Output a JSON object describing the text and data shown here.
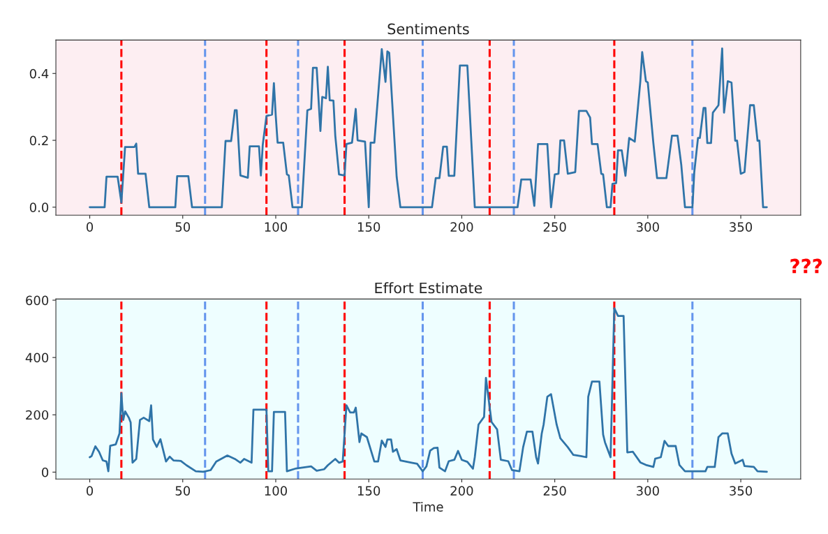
{
  "chart_data": [
    {
      "type": "line",
      "title": "Sentiments",
      "xlim": [
        -18.2,
        382.2
      ],
      "xticks": [
        0,
        50,
        100,
        150,
        200,
        250,
        300,
        350
      ],
      "ylim": [
        -0.024,
        0.5
      ],
      "yticks": [
        {
          "value": 0,
          "label": "0.0"
        },
        0.2,
        0.4
      ],
      "grid": false,
      "marker": "none",
      "line_style": "solid",
      "series": [
        {
          "color": "#2f74a8",
          "x": [
            0,
            8,
            9,
            15,
            17,
            19,
            24,
            25,
            26,
            30,
            32,
            46,
            47,
            53,
            55,
            71,
            73,
            76,
            78,
            79,
            81,
            85,
            86,
            91,
            92,
            93,
            95,
            98,
            99,
            100,
            101,
            104,
            106,
            107,
            109,
            114,
            117,
            119,
            120,
            122,
            124,
            125,
            127,
            128,
            129,
            131,
            132,
            134,
            137,
            138,
            141,
            143,
            144,
            148,
            150,
            151,
            153,
            157,
            159,
            160,
            161,
            165,
            167,
            184,
            186,
            188,
            190,
            192,
            193,
            196,
            199,
            203,
            207,
            230,
            232,
            237,
            239,
            241,
            246,
            248,
            250,
            252,
            253,
            255,
            257,
            261,
            263,
            267,
            269,
            270,
            273,
            275,
            276,
            278,
            280,
            281,
            283,
            284,
            286,
            288,
            290,
            293,
            296,
            297,
            299,
            300,
            303,
            305,
            310,
            313,
            316,
            318,
            320,
            324,
            325,
            327,
            328,
            330,
            331,
            332,
            334,
            335,
            338,
            340,
            341,
            343,
            345,
            347,
            348,
            350,
            352,
            355,
            357,
            359,
            360,
            362,
            364
          ],
          "values": [
            0,
            0,
            0.091,
            0.091,
            0.014,
            0.18,
            0.18,
            0.19,
            0.1,
            0.1,
            0,
            0,
            0.093,
            0.093,
            0,
            0,
            0.198,
            0.198,
            0.29,
            0.29,
            0.095,
            0.088,
            0.182,
            0.182,
            0.095,
            0.186,
            0.273,
            0.277,
            0.371,
            0.273,
            0.193,
            0.193,
            0.098,
            0.095,
            0,
            0,
            0.29,
            0.294,
            0.417,
            0.417,
            0.228,
            0.33,
            0.326,
            0.42,
            0.32,
            0.319,
            0.214,
            0.098,
            0.095,
            0.189,
            0.193,
            0.294,
            0.2,
            0.196,
            0,
            0.193,
            0.193,
            0.473,
            0.375,
            0.466,
            0.462,
            0.091,
            0,
            0,
            0.087,
            0.087,
            0.181,
            0.181,
            0.094,
            0.094,
            0.424,
            0.424,
            0,
            0,
            0.083,
            0.083,
            0.004,
            0.189,
            0.189,
            0,
            0.098,
            0.1,
            0.2,
            0.2,
            0.1,
            0.105,
            0.288,
            0.288,
            0.268,
            0.189,
            0.189,
            0.1,
            0.098,
            0,
            0,
            0.07,
            0.072,
            0.17,
            0.17,
            0.094,
            0.207,
            0.196,
            0.377,
            0.464,
            0.377,
            0.373,
            0.192,
            0.087,
            0.087,
            0.214,
            0.214,
            0.127,
            0,
            0,
            0.105,
            0.207,
            0.207,
            0.297,
            0.297,
            0.192,
            0.192,
            0.283,
            0.305,
            0.475,
            0.283,
            0.377,
            0.373,
            0.199,
            0.199,
            0.1,
            0.105,
            0.305,
            0.305,
            0.199,
            0.199,
            0,
            0
          ]
        }
      ],
      "ref_lines": [
        {
          "axis": "x",
          "value": 17,
          "color": "#ff0000",
          "line_style": "dashed"
        },
        {
          "axis": "x",
          "value": 95,
          "color": "#ff0000",
          "line_style": "dashed"
        },
        {
          "axis": "x",
          "value": 137,
          "color": "#ff0000",
          "line_style": "dashed"
        },
        {
          "axis": "x",
          "value": 215,
          "color": "#ff0000",
          "line_style": "dashed"
        },
        {
          "axis": "x",
          "value": 282,
          "color": "#ff0000",
          "line_style": "dashed"
        },
        {
          "axis": "x",
          "value": 62,
          "color": "#6495ed",
          "line_style": "dashed"
        },
        {
          "axis": "x",
          "value": 112,
          "color": "#6495ed",
          "line_style": "dashed"
        },
        {
          "axis": "x",
          "value": 179,
          "color": "#6495ed",
          "line_style": "dashed"
        },
        {
          "axis": "x",
          "value": 228,
          "color": "#6495ed",
          "line_style": "dashed"
        },
        {
          "axis": "x",
          "value": 324,
          "color": "#6495ed",
          "line_style": "dashed"
        }
      ],
      "annotations": [
        "???"
      ]
    },
    {
      "type": "line",
      "title": "Effort Estimate",
      "xlabel": "Time",
      "xlim": [
        -18.2,
        382.2
      ],
      "xticks": [
        0,
        50,
        100,
        150,
        200,
        250,
        300,
        350
      ],
      "ylim": [
        -24,
        604
      ],
      "yticks": [
        0,
        200,
        400,
        600
      ],
      "grid": false,
      "marker": "none",
      "line_style": "solid",
      "series": [
        {
          "color": "#2f74a8",
          "x": [
            0,
            1,
            3,
            5,
            7,
            9,
            10,
            11,
            14,
            16,
            17,
            18,
            19,
            21,
            22,
            23,
            25,
            27,
            29,
            32,
            33,
            34,
            36,
            38,
            41,
            43,
            45,
            49,
            52,
            57,
            61,
            65,
            68,
            74,
            78,
            81,
            83,
            87,
            88,
            95,
            96,
            98,
            99,
            105,
            106,
            111,
            119,
            122,
            126,
            128,
            132,
            134,
            136,
            138,
            140,
            142,
            143,
            145,
            146,
            149,
            153,
            155,
            157,
            159,
            160,
            162,
            163,
            165,
            167,
            173,
            176,
            179,
            181,
            183,
            185,
            187,
            188,
            191,
            193,
            196,
            198,
            200,
            203,
            206,
            207,
            209,
            212,
            213,
            216,
            219,
            221,
            225,
            227,
            231,
            233,
            235,
            238,
            240,
            241,
            243,
            244,
            246,
            248,
            251,
            253,
            257,
            260,
            264,
            267,
            268,
            270,
            274,
            276,
            277,
            280,
            282,
            284,
            287,
            289,
            292,
            296,
            299,
            303,
            304,
            307,
            309,
            311,
            315,
            317,
            320,
            331,
            332,
            336,
            338,
            340,
            343,
            345,
            347,
            351,
            352,
            357,
            359,
            364
          ],
          "values": [
            52,
            56,
            90,
            71,
            41,
            37,
            3,
            92,
            97,
            135,
            275,
            182,
            212,
            190,
            173,
            33,
            46,
            182,
            190,
            178,
            233,
            114,
            88,
            115,
            37,
            54,
            41,
            39,
            24,
            3,
            1,
            7,
            37,
            58,
            46,
            33,
            46,
            33,
            218,
            218,
            3,
            3,
            210,
            210,
            3,
            13,
            20,
            5,
            10,
            24,
            46,
            33,
            37,
            233,
            208,
            208,
            225,
            105,
            135,
            122,
            37,
            37,
            110,
            88,
            114,
            114,
            71,
            80,
            41,
            33,
            29,
            3,
            20,
            75,
            84,
            85,
            16,
            3,
            38,
            43,
            74,
            43,
            36,
            12,
            52,
            166,
            193,
            329,
            175,
            149,
            43,
            38,
            7,
            3,
            87,
            141,
            141,
            52,
            30,
            135,
            166,
            263,
            272,
            166,
            118,
            87,
            60,
            56,
            52,
            263,
            316,
            316,
            131,
            104,
            52,
            572,
            545,
            545,
            69,
            71,
            34,
            25,
            18,
            47,
            52,
            109,
            91,
            91,
            25,
            3,
            3,
            18,
            18,
            122,
            135,
            135,
            65,
            30,
            43,
            21,
            18,
            3,
            1
          ]
        }
      ],
      "ref_lines": [
        {
          "axis": "x",
          "value": 17,
          "color": "#ff0000",
          "line_style": "dashed"
        },
        {
          "axis": "x",
          "value": 95,
          "color": "#ff0000",
          "line_style": "dashed"
        },
        {
          "axis": "x",
          "value": 137,
          "color": "#ff0000",
          "line_style": "dashed"
        },
        {
          "axis": "x",
          "value": 215,
          "color": "#ff0000",
          "line_style": "dashed"
        },
        {
          "axis": "x",
          "value": 282,
          "color": "#ff0000",
          "line_style": "dashed"
        },
        {
          "axis": "x",
          "value": 62,
          "color": "#6495ed",
          "line_style": "dashed"
        },
        {
          "axis": "x",
          "value": 112,
          "color": "#6495ed",
          "line_style": "dashed"
        },
        {
          "axis": "x",
          "value": 179,
          "color": "#6495ed",
          "line_style": "dashed"
        },
        {
          "axis": "x",
          "value": 228,
          "color": "#6495ed",
          "line_style": "dashed"
        },
        {
          "axis": "x",
          "value": 324,
          "color": "#6495ed",
          "line_style": "dashed"
        }
      ]
    }
  ]
}
